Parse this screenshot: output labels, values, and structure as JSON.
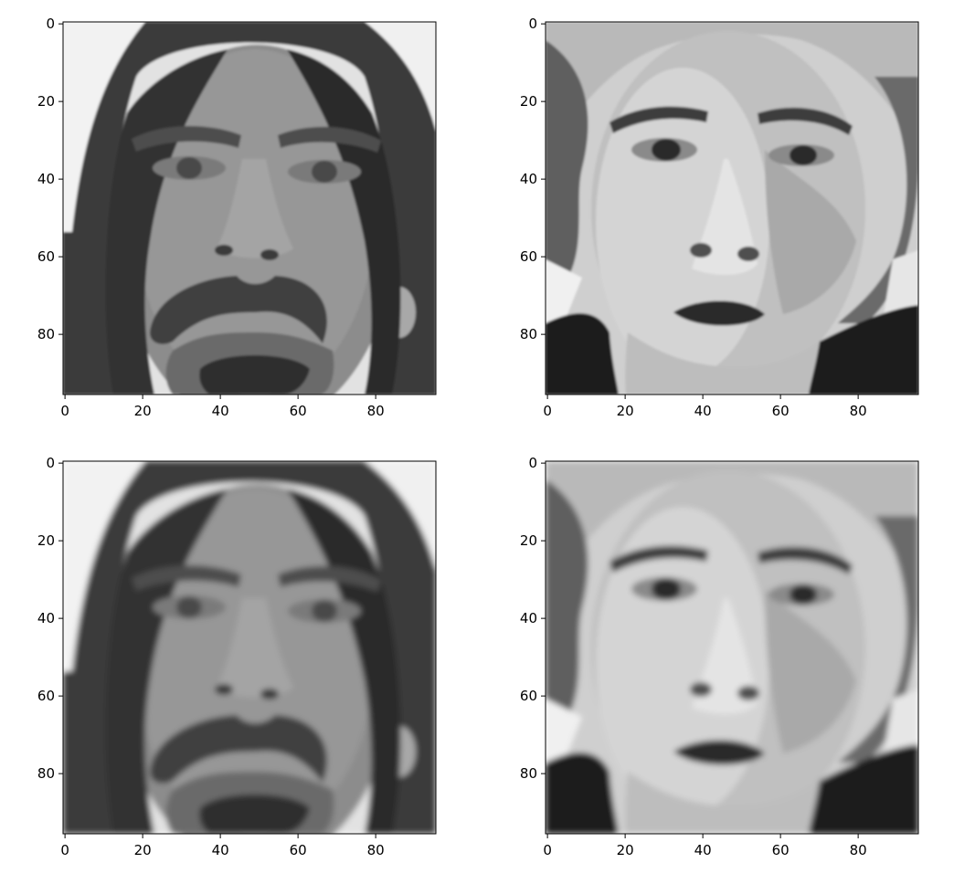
{
  "figure": {
    "panels": [
      {
        "name": "panel-top-left",
        "image": "grayscale portrait of a man with long dark hair, mustache and goatee",
        "xticks": [
          "0",
          "20",
          "40",
          "60",
          "80"
        ],
        "yticks": [
          "0",
          "20",
          "40",
          "60",
          "80"
        ]
      },
      {
        "name": "panel-top-right",
        "image": "grayscale portrait of a person with wavy light hair and pursed lips",
        "xticks": [
          "0",
          "20",
          "40",
          "60",
          "80"
        ],
        "yticks": [
          "0",
          "20",
          "40",
          "60",
          "80"
        ]
      },
      {
        "name": "panel-bottom-left",
        "image": "smoothed reconstruction of the man with mustache and goatee",
        "xticks": [
          "0",
          "20",
          "40",
          "60",
          "80"
        ],
        "yticks": [
          "0",
          "20",
          "40",
          "60",
          "80"
        ]
      },
      {
        "name": "panel-bottom-right",
        "image": "smoothed reconstruction of the person with wavy light hair",
        "xticks": [
          "0",
          "20",
          "40",
          "60",
          "80"
        ],
        "yticks": [
          "0",
          "20",
          "40",
          "60",
          "80"
        ]
      }
    ],
    "axis": {
      "xlim": [
        -0.5,
        95.5
      ],
      "ylim": [
        95.5,
        -0.5
      ]
    }
  },
  "colors": {
    "tick_text": "#000000",
    "axis_line": "#000000"
  }
}
